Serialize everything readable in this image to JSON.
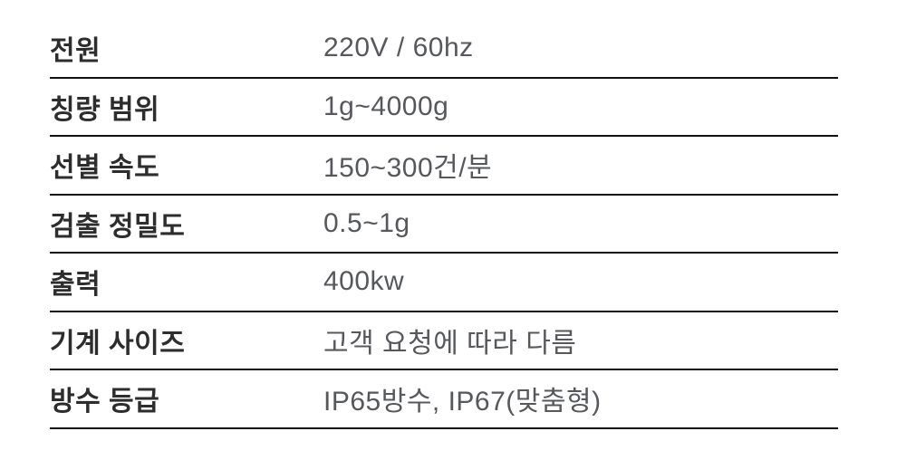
{
  "table": {
    "rows": [
      {
        "label": "전원",
        "value": "220V / 60hz"
      },
      {
        "label": "칭량 범위",
        "value": "1g~4000g"
      },
      {
        "label": "선별 속도",
        "value": "150~300건/분"
      },
      {
        "label": "검출 정밀도",
        "value": "0.5~1g"
      },
      {
        "label": "출력",
        "value": "400kw"
      },
      {
        "label": "기계 사이즈",
        "value": "고객 요청에 따라 다름"
      },
      {
        "label": "방수 등급",
        "value": "IP65방수, IP67(맞춤형)"
      }
    ],
    "colors": {
      "label_text": "#2d2d2d",
      "value_text": "#56585c",
      "divider": "#121212",
      "background": "#ffffff"
    }
  }
}
